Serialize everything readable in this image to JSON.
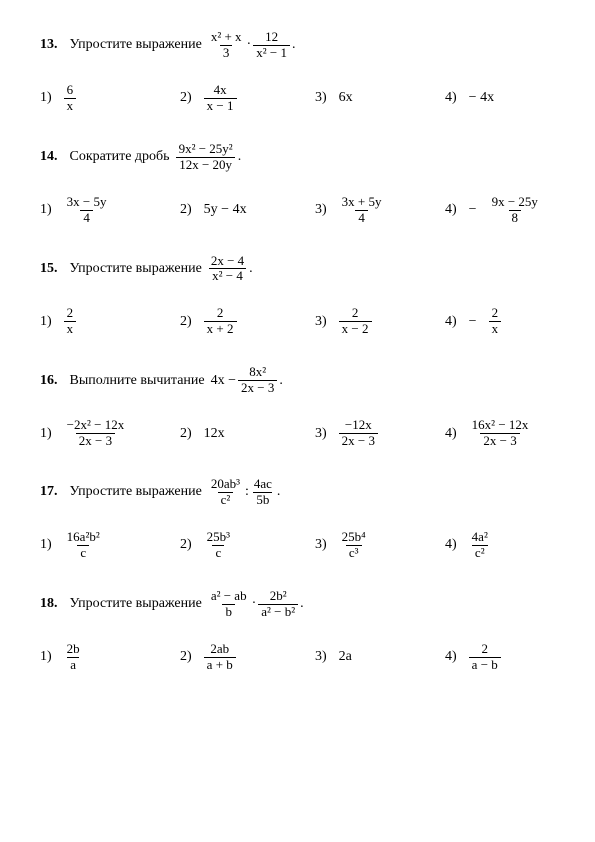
{
  "page": {
    "background": "#ffffff",
    "text_color": "#000000",
    "font": "Times New Roman",
    "font_size": 14
  },
  "problems": [
    {
      "num": "13.",
      "text": "Упростите выражение",
      "expr": {
        "f1": {
          "num": "x² + x",
          "den": "3"
        },
        "dot": "·",
        "f2": {
          "num": "12",
          "den": "x² − 1"
        },
        "tail": " ."
      },
      "opts": [
        {
          "n": "1)",
          "frac": {
            "num": "6",
            "den": "x"
          }
        },
        {
          "n": "2)",
          "frac": {
            "num": "4x",
            "den": "x − 1"
          }
        },
        {
          "n": "3)",
          "plain": "6x"
        },
        {
          "n": "4)",
          "plain": "− 4x"
        }
      ]
    },
    {
      "num": "14.",
      "text": "Сократите дробь",
      "expr": {
        "f1": {
          "num": "9x² − 25y²",
          "den": "12x − 20y"
        },
        "tail": " ."
      },
      "opts": [
        {
          "n": "1)",
          "frac": {
            "num": "3x − 5y",
            "den": "4"
          }
        },
        {
          "n": "2)",
          "plain": "5y − 4x"
        },
        {
          "n": "3)",
          "frac": {
            "num": "3x + 5y",
            "den": "4"
          }
        },
        {
          "n": "4)",
          "neg": "−",
          "frac": {
            "num": "9x − 25y",
            "den": "8"
          }
        }
      ]
    },
    {
      "num": "15.",
      "text": "Упростите выражение",
      "expr": {
        "f1": {
          "num": "2x − 4",
          "den": "x² − 4"
        },
        "tail": " ."
      },
      "opts": [
        {
          "n": "1)",
          "frac": {
            "num": "2",
            "den": "x"
          }
        },
        {
          "n": "2)",
          "frac": {
            "num": "2",
            "den": "x + 2"
          }
        },
        {
          "n": "3)",
          "frac": {
            "num": "2",
            "den": "x − 2"
          }
        },
        {
          "n": "4)",
          "neg": "−",
          "frac": {
            "num": "2",
            "den": "x"
          }
        }
      ]
    },
    {
      "num": "16.",
      "text": "Выполните вычитание",
      "expr": {
        "lead": "4x −",
        "f1": {
          "num": "8x²",
          "den": "2x − 3"
        },
        "tail": " ."
      },
      "opts": [
        {
          "n": "1)",
          "frac": {
            "num": "−2x² − 12x",
            "den": "2x − 3"
          }
        },
        {
          "n": "2)",
          "plain": "12x"
        },
        {
          "n": "3)",
          "frac": {
            "num": "−12x",
            "den": "2x − 3"
          }
        },
        {
          "n": "4)",
          "frac": {
            "num": "16x² − 12x",
            "den": "2x − 3"
          }
        }
      ]
    },
    {
      "num": "17.",
      "text": "Упростите выражение",
      "expr": {
        "f1": {
          "num": "20ab³",
          "den": "c²"
        },
        "colon": ":",
        "f2": {
          "num": "4ac",
          "den": "5b"
        },
        "tail": " ."
      },
      "opts": [
        {
          "n": "1)",
          "frac": {
            "num": "16a²b²",
            "den": "c"
          }
        },
        {
          "n": "2)",
          "frac": {
            "num": "25b³",
            "den": "c"
          }
        },
        {
          "n": "3)",
          "frac": {
            "num": "25b⁴",
            "den": "c³"
          }
        },
        {
          "n": "4)",
          "frac": {
            "num": "4a²",
            "den": "c²"
          }
        }
      ]
    },
    {
      "num": "18.",
      "text": "Упростите выражение",
      "expr": {
        "f1": {
          "num": "a² − ab",
          "den": "b"
        },
        "dot": "·",
        "f2": {
          "num": "2b²",
          "den": "a² − b²"
        },
        "tail": " ."
      },
      "opts": [
        {
          "n": "1)",
          "frac": {
            "num": "2b",
            "den": "a"
          }
        },
        {
          "n": "2)",
          "frac": {
            "num": "2ab",
            "den": "a + b"
          }
        },
        {
          "n": "3)",
          "plain": "2a"
        },
        {
          "n": "4)",
          "frac": {
            "num": "2",
            "den": "a − b"
          }
        }
      ]
    }
  ]
}
